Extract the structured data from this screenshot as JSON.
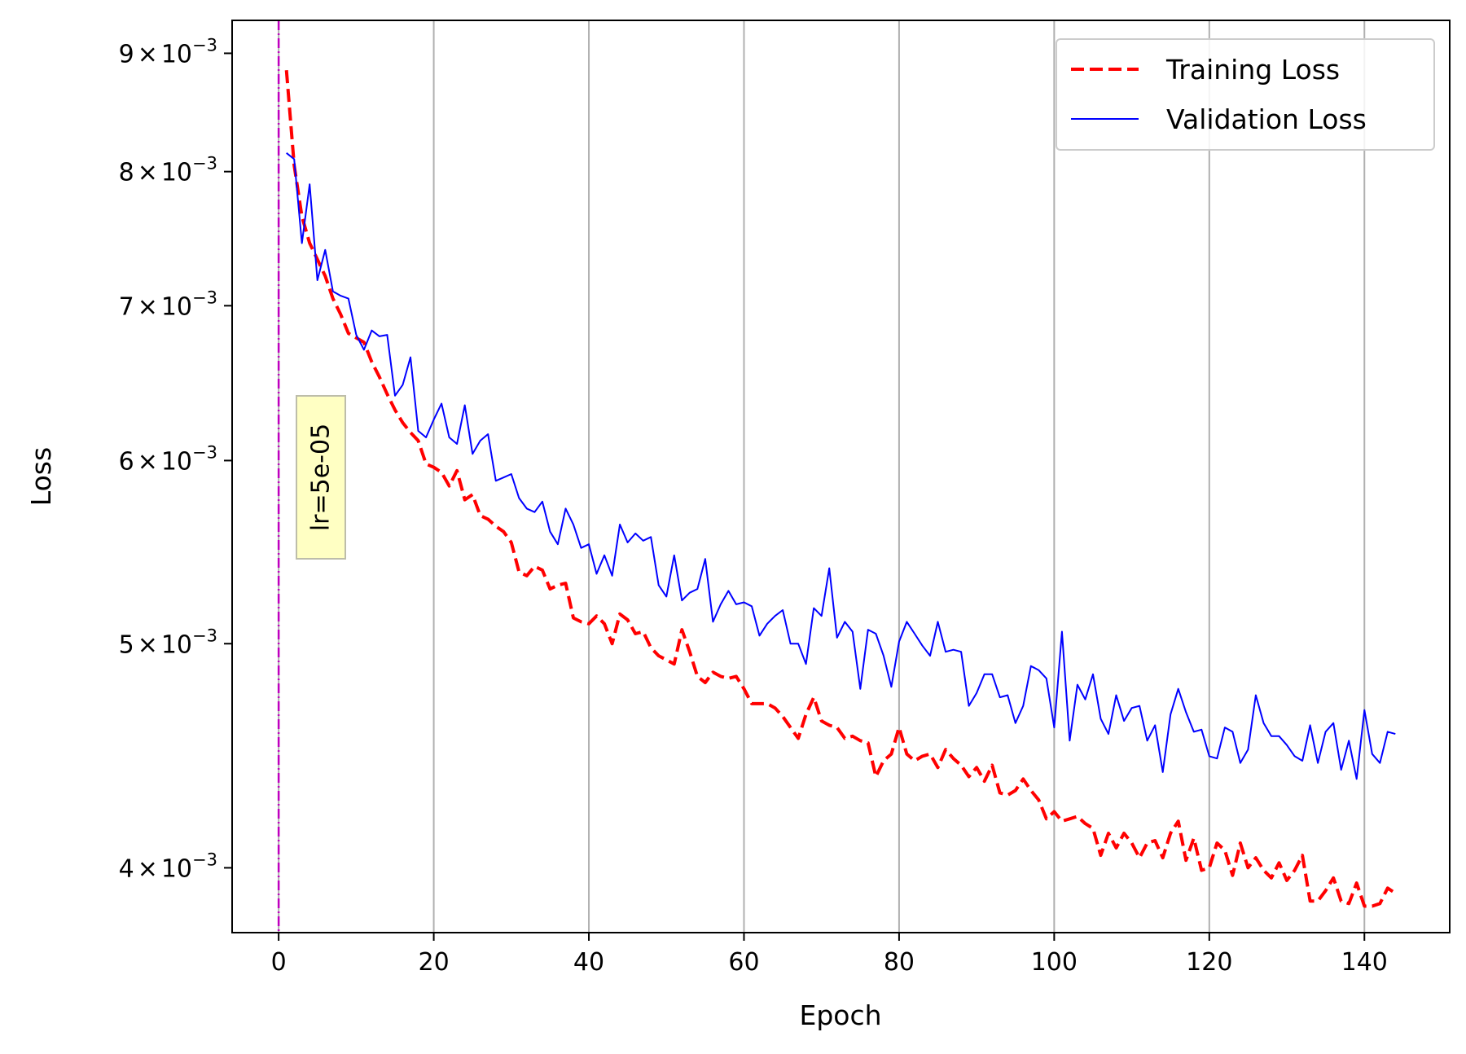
{
  "chart_data": {
    "type": "line",
    "title": "",
    "xlabel": "Epoch",
    "ylabel": "Loss",
    "x_scale": "linear",
    "y_scale": "log",
    "xlim": [
      -6,
      151
    ],
    "ylim": [
      0.00375,
      0.0093
    ],
    "grid": "vertical",
    "legend_position": "top-right",
    "x_ticks": [
      0,
      20,
      40,
      60,
      80,
      100,
      120,
      140
    ],
    "x_tick_labels": [
      "0",
      "20",
      "40",
      "60",
      "80",
      "100",
      "120",
      "140"
    ],
    "y_ticks": [
      0.004,
      0.005,
      0.006,
      0.007,
      0.008,
      0.009
    ],
    "y_tick_labels": [
      {
        "mantissa": "4",
        "times": "×",
        "base": "10",
        "exponent": "−3"
      },
      {
        "mantissa": "5",
        "times": "×",
        "base": "10",
        "exponent": "−3"
      },
      {
        "mantissa": "6",
        "times": "×",
        "base": "10",
        "exponent": "−3"
      },
      {
        "mantissa": "7",
        "times": "×",
        "base": "10",
        "exponent": "−3"
      },
      {
        "mantissa": "8",
        "times": "×",
        "base": "10",
        "exponent": "−3"
      },
      {
        "mantissa": "9",
        "times": "×",
        "base": "10",
        "exponent": "−3"
      }
    ],
    "vline": {
      "x": 0,
      "color": "#bf00bf",
      "style": "dash-dot"
    },
    "annotation": {
      "text": "lr=5e-05",
      "x": 5,
      "y": 0.0059,
      "rotation": -90,
      "box_color": "#ffffc0"
    },
    "series": [
      {
        "name": "Training Loss",
        "color": "#ff0000",
        "style": "dashed",
        "x": [
          1,
          2,
          3,
          4,
          5,
          6,
          7,
          8,
          9,
          10,
          11,
          12,
          13,
          14,
          15,
          16,
          17,
          18,
          19,
          20,
          21,
          22,
          23,
          24,
          25,
          26,
          27,
          28,
          29,
          30,
          31,
          32,
          33,
          34,
          35,
          36,
          37,
          38,
          39,
          40,
          41,
          42,
          43,
          44,
          45,
          46,
          47,
          48,
          49,
          50,
          51,
          52,
          53,
          54,
          55,
          56,
          57,
          58,
          59,
          60,
          61,
          62,
          63,
          64,
          65,
          66,
          67,
          68,
          69,
          70,
          71,
          72,
          73,
          74,
          75,
          76,
          77,
          78,
          79,
          80,
          81,
          82,
          83,
          84,
          85,
          86,
          87,
          88,
          89,
          90,
          91,
          92,
          93,
          94,
          95,
          96,
          97,
          98,
          99,
          100,
          101,
          102,
          103,
          104,
          105,
          106,
          107,
          108,
          109,
          110,
          111,
          112,
          113,
          114,
          115,
          116,
          117,
          118,
          119,
          120,
          121,
          122,
          123,
          124,
          125,
          126,
          127,
          128,
          129,
          130,
          131,
          132,
          133,
          134,
          135,
          136,
          137,
          138,
          139,
          140,
          141,
          142,
          143,
          144
        ],
        "values": [
          0.00885,
          0.00805,
          0.00765,
          0.00745,
          0.00733,
          0.00721,
          0.00705,
          0.00694,
          0.00681,
          0.00678,
          0.00675,
          0.00662,
          0.00652,
          0.00641,
          0.00631,
          0.00623,
          0.00617,
          0.00612,
          0.00598,
          0.00596,
          0.00593,
          0.00585,
          0.00594,
          0.00577,
          0.0058,
          0.00568,
          0.00566,
          0.00562,
          0.00559,
          0.00553,
          0.00537,
          0.00535,
          0.0054,
          0.00538,
          0.00528,
          0.0053,
          0.00531,
          0.00513,
          0.00511,
          0.0051,
          0.00514,
          0.0051,
          0.005,
          0.00515,
          0.00512,
          0.00505,
          0.00506,
          0.00498,
          0.00494,
          0.00492,
          0.0049,
          0.00507,
          0.00496,
          0.00484,
          0.00481,
          0.00486,
          0.00484,
          0.00483,
          0.00484,
          0.00478,
          0.00471,
          0.00471,
          0.00471,
          0.00469,
          0.00465,
          0.0046,
          0.00455,
          0.00466,
          0.00474,
          0.00463,
          0.00461,
          0.0046,
          0.00455,
          0.00456,
          0.00454,
          0.00453,
          0.00438,
          0.00445,
          0.00448,
          0.0046,
          0.00448,
          0.00445,
          0.00447,
          0.00448,
          0.00442,
          0.0045,
          0.00446,
          0.00443,
          0.00438,
          0.00442,
          0.00436,
          0.00443,
          0.00431,
          0.0043,
          0.00432,
          0.00437,
          0.00432,
          0.00428,
          0.0042,
          0.00423,
          0.00419,
          0.0042,
          0.00421,
          0.00418,
          0.00416,
          0.00405,
          0.00414,
          0.00408,
          0.00414,
          0.0041,
          0.00404,
          0.0041,
          0.00411,
          0.00404,
          0.00414,
          0.00419,
          0.00403,
          0.00412,
          0.00399,
          0.004,
          0.0041,
          0.00407,
          0.00397,
          0.0041,
          0.004,
          0.00404,
          0.00399,
          0.00396,
          0.00402,
          0.00395,
          0.00399,
          0.00405,
          0.00387,
          0.00387,
          0.00391,
          0.00396,
          0.00387,
          0.00386,
          0.00394,
          0.00385,
          0.00385,
          0.00386,
          0.00392,
          0.0039
        ]
      },
      {
        "name": "Validation Loss",
        "color": "#0000ff",
        "style": "solid",
        "x": [
          1,
          2,
          3,
          4,
          5,
          6,
          7,
          8,
          9,
          10,
          11,
          12,
          13,
          14,
          15,
          16,
          17,
          18,
          19,
          20,
          21,
          22,
          23,
          24,
          25,
          26,
          27,
          28,
          29,
          30,
          31,
          32,
          33,
          34,
          35,
          36,
          37,
          38,
          39,
          40,
          41,
          42,
          43,
          44,
          45,
          46,
          47,
          48,
          49,
          50,
          51,
          52,
          53,
          54,
          55,
          56,
          57,
          58,
          59,
          60,
          61,
          62,
          63,
          64,
          65,
          66,
          67,
          68,
          69,
          70,
          71,
          72,
          73,
          74,
          75,
          76,
          77,
          78,
          79,
          80,
          81,
          82,
          83,
          84,
          85,
          86,
          87,
          88,
          89,
          90,
          91,
          92,
          93,
          94,
          95,
          96,
          97,
          98,
          99,
          100,
          101,
          102,
          103,
          104,
          105,
          106,
          107,
          108,
          109,
          110,
          111,
          112,
          113,
          114,
          115,
          116,
          117,
          118,
          119,
          120,
          121,
          122,
          123,
          124,
          125,
          126,
          127,
          128,
          129,
          130,
          131,
          132,
          133,
          134,
          135,
          136,
          137,
          138,
          139,
          140,
          141,
          142,
          143,
          144
        ],
        "values": [
          0.00815,
          0.0081,
          0.00745,
          0.0079,
          0.00718,
          0.0074,
          0.0071,
          0.00707,
          0.00705,
          0.0068,
          0.0067,
          0.00683,
          0.00679,
          0.0068,
          0.0064,
          0.00647,
          0.00665,
          0.00618,
          0.00614,
          0.00625,
          0.00635,
          0.00614,
          0.0061,
          0.00634,
          0.00604,
          0.00612,
          0.00616,
          0.00588,
          0.0059,
          0.00592,
          0.00578,
          0.00572,
          0.0057,
          0.00576,
          0.00559,
          0.00552,
          0.00572,
          0.00563,
          0.0055,
          0.00552,
          0.00536,
          0.00546,
          0.00535,
          0.00563,
          0.00553,
          0.00558,
          0.00554,
          0.00556,
          0.0053,
          0.00524,
          0.00546,
          0.00522,
          0.00526,
          0.00528,
          0.00544,
          0.00511,
          0.0052,
          0.00527,
          0.0052,
          0.00521,
          0.00519,
          0.00504,
          0.0051,
          0.00514,
          0.00517,
          0.005,
          0.005,
          0.0049,
          0.00518,
          0.00514,
          0.00539,
          0.00503,
          0.00511,
          0.00506,
          0.00478,
          0.00507,
          0.00505,
          0.00494,
          0.00479,
          0.00501,
          0.00511,
          0.00505,
          0.00499,
          0.00494,
          0.00511,
          0.00496,
          0.00497,
          0.00496,
          0.0047,
          0.00476,
          0.00485,
          0.00485,
          0.00474,
          0.00475,
          0.00462,
          0.0047,
          0.00489,
          0.00487,
          0.00483,
          0.0046,
          0.00506,
          0.00454,
          0.0048,
          0.00473,
          0.00485,
          0.00464,
          0.00457,
          0.00475,
          0.00463,
          0.00469,
          0.0047,
          0.00454,
          0.00461,
          0.0044,
          0.00466,
          0.00478,
          0.00467,
          0.00458,
          0.00459,
          0.00447,
          0.00446,
          0.0046,
          0.00458,
          0.00444,
          0.0045,
          0.00475,
          0.00462,
          0.00456,
          0.00456,
          0.00452,
          0.00447,
          0.00445,
          0.00461,
          0.00444,
          0.00458,
          0.00462,
          0.00441,
          0.00454,
          0.00437,
          0.00468,
          0.00448,
          0.00444,
          0.00458,
          0.00457
        ]
      }
    ]
  }
}
